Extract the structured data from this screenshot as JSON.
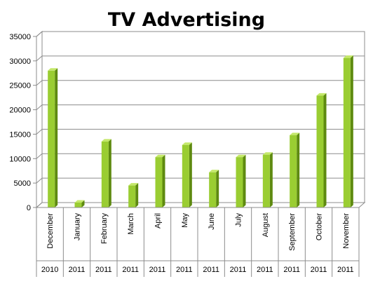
{
  "chart_data": {
    "type": "bar",
    "title": "TV Advertising",
    "categories": [
      "December",
      "January",
      "February",
      "March",
      "April",
      "May",
      "June",
      "July",
      "August",
      "September",
      "October",
      "November"
    ],
    "years": [
      "2010",
      "2011",
      "2011",
      "2011",
      "2011",
      "2011",
      "2011",
      "2011",
      "2011",
      "2011",
      "2011",
      "2011"
    ],
    "values": [
      28000,
      1000,
      13500,
      4500,
      10300,
      12800,
      7200,
      10300,
      10800,
      14800,
      22900,
      30600
    ],
    "ylim": [
      0,
      35000
    ],
    "yticks": [
      "0",
      "5000",
      "10000",
      "15000",
      "20000",
      "25000",
      "30000",
      "35000"
    ],
    "xlabel": "",
    "ylabel": "",
    "grid": true,
    "legend": "none",
    "colors": {
      "bar_front": "#9acd32",
      "bar_side": "#5e8a10",
      "bar_top": "#c4e86a",
      "grid": "#8c8c8c",
      "wall": "#ffffff",
      "axis_text": "#000000"
    }
  }
}
